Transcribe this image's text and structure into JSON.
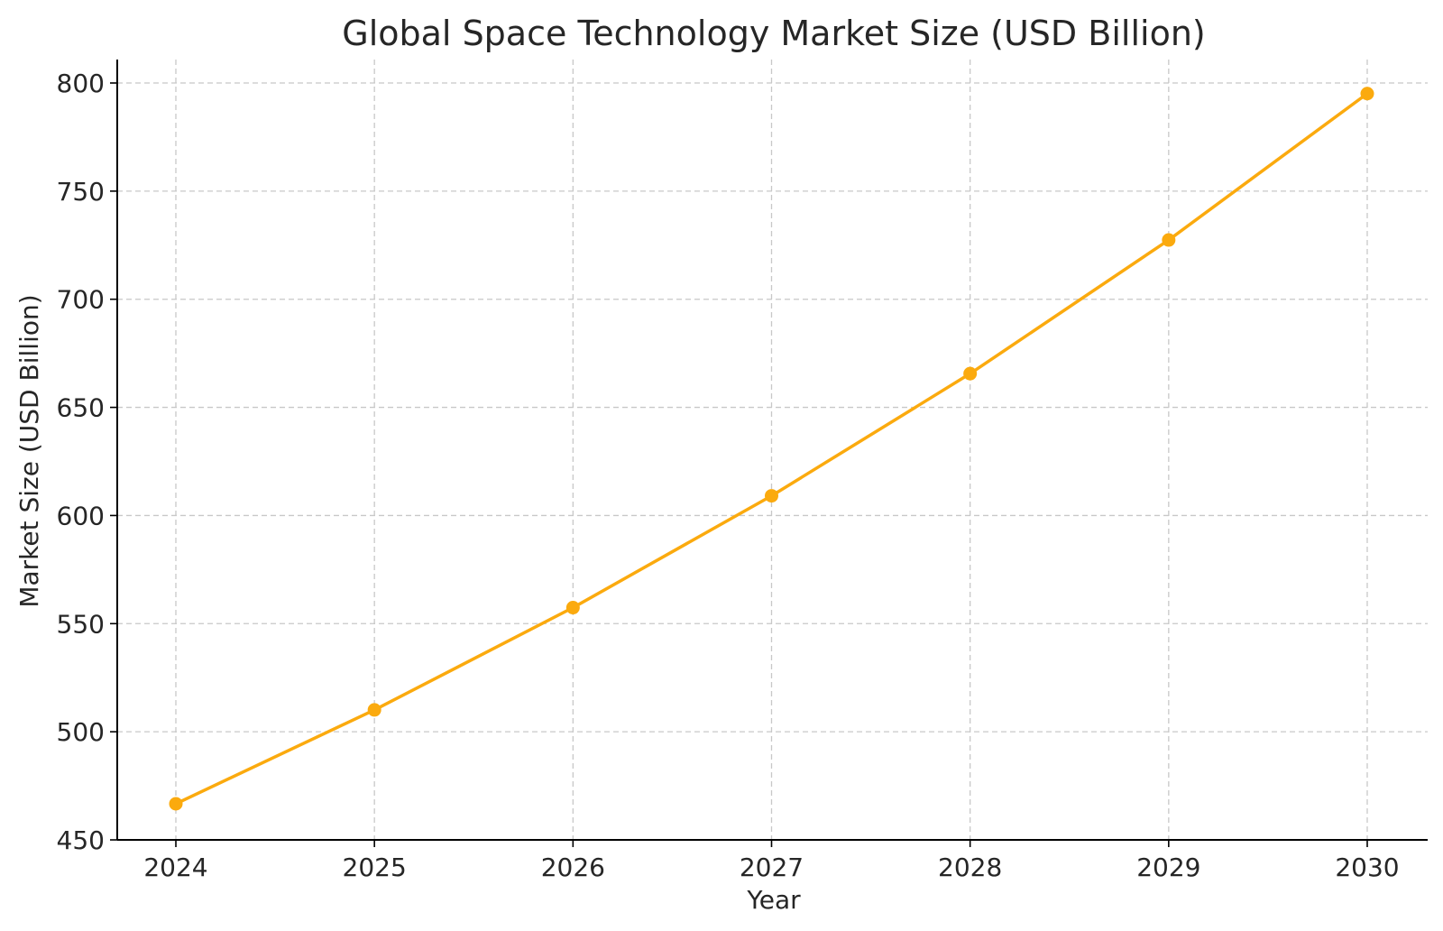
{
  "chart_data": {
    "type": "line",
    "title": "Global Space Technology Market Size (USD Billion)",
    "xlabel": "Year",
    "ylabel": "Market Size (USD Billion)",
    "x": [
      2024,
      2025,
      2026,
      2027,
      2028,
      2029,
      2030
    ],
    "x_ticks": [
      "2024",
      "2025",
      "2026",
      "2027",
      "2028",
      "2029",
      "2030"
    ],
    "y_ticks": [
      450,
      500,
      550,
      600,
      650,
      700,
      750,
      800
    ],
    "ylim": [
      450,
      811
    ],
    "grid": true,
    "series": [
      {
        "color": "#FBAA0E",
        "marker": "circle",
        "values": [
          466.7,
          510.1,
          557.4,
          609.1,
          665.6,
          727.4,
          795.1
        ]
      }
    ]
  }
}
